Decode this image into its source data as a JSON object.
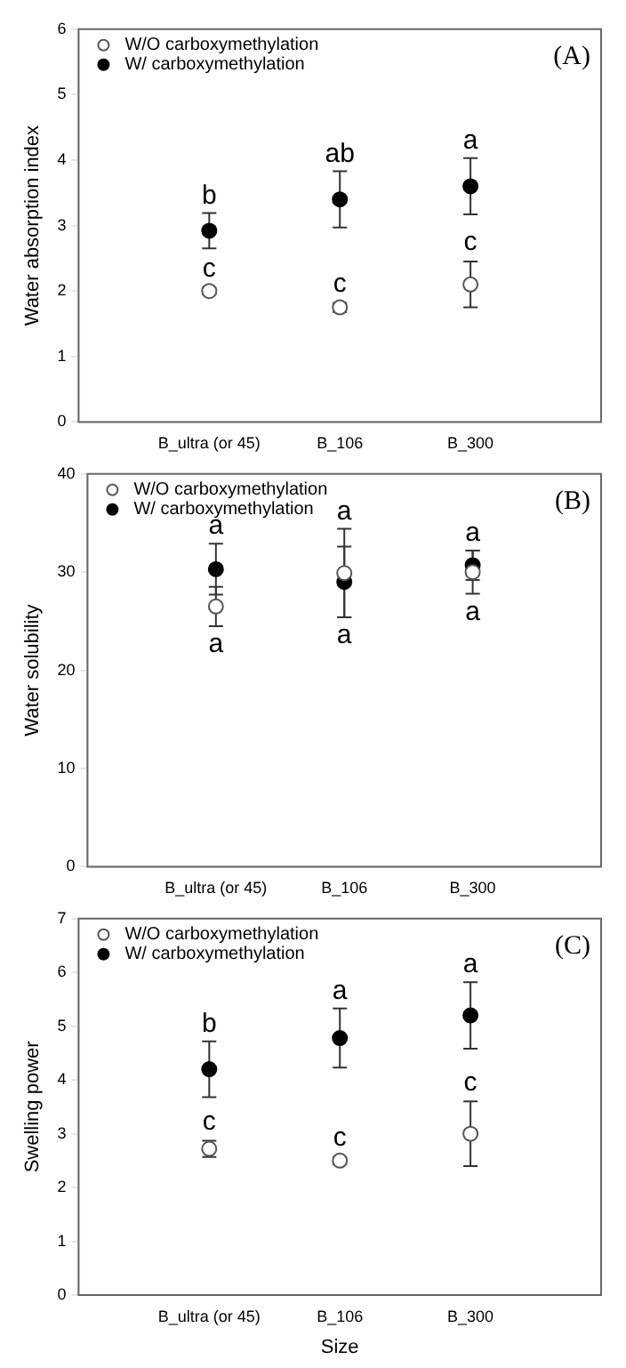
{
  "chart_data": [
    {
      "type": "scatter",
      "title": "(A)",
      "ylabel": "Water absorption index",
      "categories": [
        "B_ultra (or 45)",
        "B_106",
        "B_300"
      ],
      "ylim": [
        0,
        6
      ],
      "yticks": [
        0,
        1,
        2,
        3,
        4,
        5,
        6
      ],
      "marker": "circle",
      "legend": "top left",
      "grid": false,
      "series": [
        {
          "name": "W/O carboxymethylation",
          "color": "#555555",
          "values": [
            2.0,
            1.75,
            2.1
          ],
          "errors": [
            0.05,
            0.07,
            0.35
          ]
        },
        {
          "name": "W/ carboxymethylation",
          "color": "#000000",
          "values": [
            2.92,
            3.4,
            3.6
          ],
          "errors": [
            0.27,
            0.43,
            0.43
          ]
        }
      ],
      "annotations": [
        "b",
        "ab",
        "a",
        "c",
        "c",
        "c"
      ]
    },
    {
      "type": "scatter",
      "title": "(B)",
      "ylabel": "Water solubility",
      "categories": [
        "B_ultra (or 45)",
        "B_106",
        "B_300"
      ],
      "ylim": [
        0,
        40
      ],
      "yticks": [
        0,
        10,
        20,
        30,
        40
      ],
      "marker": "circle",
      "legend": "top left",
      "grid": false,
      "series": [
        {
          "name": "W/O carboxymethylation",
          "color": "#555555",
          "values": [
            26.5,
            29.9,
            30.0
          ],
          "errors": [
            2.0,
            4.5,
            2.2
          ]
        },
        {
          "name": "W/ carboxymethylation",
          "color": "#000000",
          "values": [
            30.3,
            29.0,
            30.7
          ],
          "errors": [
            2.6,
            3.6,
            1.5
          ]
        }
      ],
      "annotations": [
        "a",
        "a",
        "a",
        "a",
        "a",
        "a"
      ]
    },
    {
      "type": "scatter",
      "title": "(C)",
      "ylabel": "Swelling power",
      "xlabel": "Size",
      "categories": [
        "B_ultra (or 45)",
        "B_106",
        "B_300"
      ],
      "ylim": [
        0,
        7
      ],
      "yticks": [
        0,
        1,
        2,
        3,
        4,
        5,
        6,
        7
      ],
      "marker": "circle",
      "legend": "top left",
      "grid": false,
      "series": [
        {
          "name": "W/O carboxymethylation",
          "color": "#555555",
          "values": [
            2.72,
            2.5,
            3.0
          ],
          "errors": [
            0.15,
            0.07,
            0.6
          ]
        },
        {
          "name": "W/ carboxymethylation",
          "color": "#000000",
          "values": [
            4.2,
            4.78,
            5.2
          ],
          "errors": [
            0.52,
            0.55,
            0.62
          ]
        }
      ],
      "annotations": [
        "b",
        "a",
        "a",
        "c",
        "c",
        "c"
      ]
    }
  ]
}
